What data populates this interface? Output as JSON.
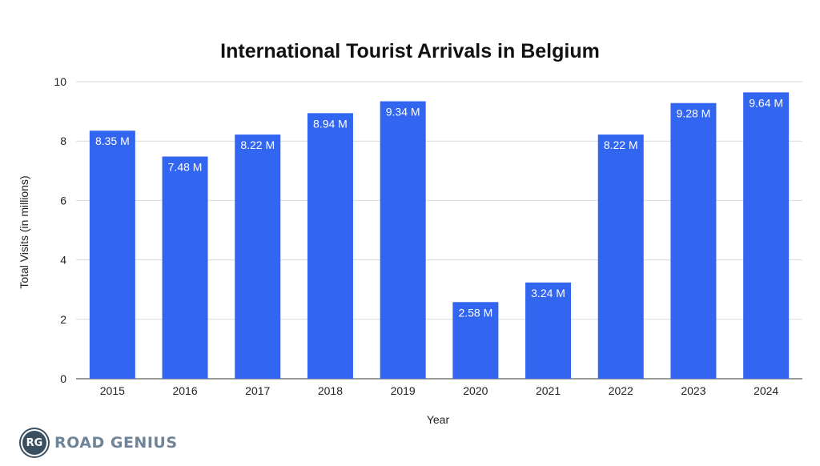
{
  "chart_data": {
    "type": "bar",
    "title": "International Tourist Arrivals in Belgium",
    "xlabel": "Year",
    "ylabel": "Total Visits (in millions)",
    "categories": [
      "2015",
      "2016",
      "2017",
      "2018",
      "2019",
      "2020",
      "2021",
      "2022",
      "2023",
      "2024"
    ],
    "values": [
      8.35,
      7.48,
      8.22,
      8.94,
      9.34,
      2.58,
      3.24,
      8.22,
      9.28,
      9.64
    ],
    "data_labels": [
      "8.35 M",
      "7.48 M",
      "8.22 M",
      "8.94 M",
      "9.34 M",
      "2.58 M",
      "3.24 M",
      "8.22 M",
      "9.28 M",
      "9.64 M"
    ],
    "ylim": [
      0,
      10
    ],
    "yticks": [
      0,
      2,
      4,
      6,
      8,
      10
    ],
    "grid": true,
    "legend": "none",
    "colors": {
      "bar": "#3366f0",
      "grid": "#d9d9d9",
      "text": "#222222"
    }
  },
  "brand": {
    "badge": "RG",
    "name": "ROAD GENIUS",
    "badge_color": "#3a5060",
    "text_color": "#6f8496"
  }
}
